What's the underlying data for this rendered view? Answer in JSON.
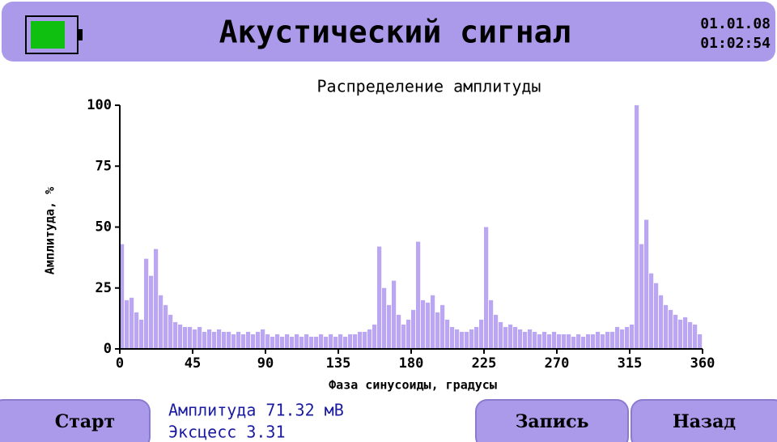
{
  "header": {
    "title": "Акустический сигнал",
    "date": "01.01.08",
    "time": "01:02:54"
  },
  "chart_data": {
    "type": "histogram",
    "title": "Распределение амплитуды",
    "x_label": "Фаза синусоиды, градусы",
    "y_label": "Амплитуда, %",
    "color": "#bba6f4",
    "bins": [
      0,
      3,
      6,
      9,
      12,
      15,
      18,
      21,
      24,
      27,
      30,
      33,
      36,
      39,
      42,
      45,
      48,
      51,
      54,
      57,
      60,
      63,
      66,
      69,
      72,
      75,
      78,
      81,
      84,
      87,
      90,
      93,
      96,
      99,
      102,
      105,
      108,
      111,
      114,
      117,
      120,
      123,
      126,
      129,
      132,
      135,
      138,
      141,
      144,
      147,
      150,
      153,
      156,
      159,
      162,
      165,
      168,
      171,
      174,
      177,
      180,
      183,
      186,
      189,
      192,
      195,
      198,
      201,
      204,
      207,
      210,
      213,
      216,
      219,
      222,
      225,
      228,
      231,
      234,
      237,
      240,
      243,
      246,
      249,
      252,
      255,
      258,
      261,
      264,
      267,
      270,
      273,
      276,
      279,
      282,
      285,
      288,
      291,
      294,
      297,
      300,
      303,
      306,
      309,
      312,
      315,
      318,
      321,
      324,
      327,
      330,
      333,
      336,
      339,
      342,
      345,
      348,
      351,
      354,
      357,
      360
    ],
    "values": [
      43,
      20,
      21,
      15,
      12,
      37,
      30,
      41,
      22,
      18,
      14,
      11,
      10,
      9,
      9,
      8,
      9,
      7,
      8,
      7,
      8,
      7,
      7,
      6,
      7,
      6,
      7,
      6,
      7,
      8,
      6,
      5,
      6,
      5,
      6,
      5,
      6,
      5,
      6,
      5,
      5,
      6,
      5,
      6,
      5,
      6,
      5,
      6,
      6,
      7,
      7,
      8,
      10,
      42,
      25,
      18,
      28,
      14,
      10,
      12,
      16,
      44,
      20,
      19,
      22,
      15,
      18,
      12,
      9,
      8,
      7,
      7,
      8,
      9,
      12,
      50,
      20,
      14,
      11,
      9,
      10,
      9,
      8,
      7,
      8,
      7,
      6,
      7,
      6,
      7,
      6,
      6,
      6,
      5,
      6,
      5,
      6,
      6,
      7,
      6,
      7,
      7,
      9,
      8,
      9,
      10,
      100,
      43,
      53,
      31,
      27,
      22,
      18,
      16,
      14,
      12,
      13,
      11,
      10,
      6
    ],
    "xlim": [
      0,
      360
    ],
    "xticks": [
      0,
      45,
      90,
      135,
      180,
      225,
      270,
      315,
      360
    ],
    "ylim": [
      0,
      100
    ],
    "yticks": [
      0,
      25,
      50,
      75,
      100
    ]
  },
  "status": {
    "amplitude": "Амплитуда 71.32 мВ",
    "excess": "Эксцесс 3.31"
  },
  "buttons": {
    "start": "Старт",
    "record": "Запись",
    "back": "Назад"
  }
}
